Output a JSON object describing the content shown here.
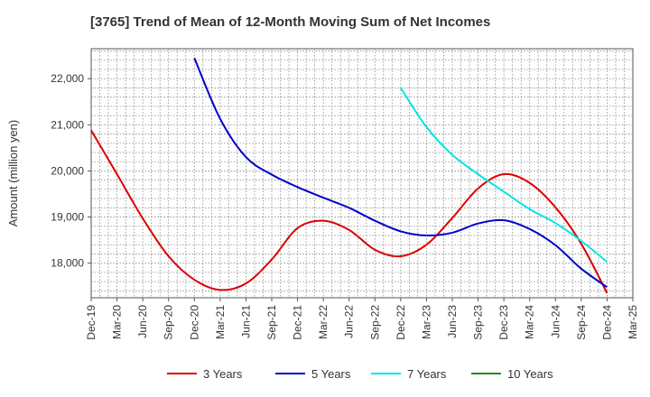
{
  "chart_data": {
    "type": "line",
    "title": "[3765]  Trend of Mean of 12-Month Moving Sum of Net Incomes",
    "ylabel": "Amount (million yen)",
    "xlabel": "",
    "categories": [
      "Dec-19",
      "Mar-20",
      "Jun-20",
      "Sep-20",
      "Dec-20",
      "Mar-21",
      "Jun-21",
      "Sep-21",
      "Dec-21",
      "Mar-22",
      "Jun-22",
      "Sep-22",
      "Dec-22",
      "Mar-23",
      "Jun-23",
      "Sep-23",
      "Dec-23",
      "Mar-24",
      "Jun-24",
      "Sep-24",
      "Dec-24",
      "Mar-25"
    ],
    "y_ticks": [
      18000,
      19000,
      20000,
      21000,
      22000
    ],
    "y_tick_labels": [
      "18,000",
      "19,000",
      "20,000",
      "21,000",
      "22,000"
    ],
    "ylim": [
      17250,
      22650
    ],
    "grid": true,
    "legend_position": "bottom",
    "series": [
      {
        "name": "3 Years",
        "color": "#dd0000",
        "x": [
          "Dec-19",
          "Mar-20",
          "Jun-20",
          "Sep-20",
          "Dec-20",
          "Mar-21",
          "Jun-21",
          "Sep-21",
          "Dec-21",
          "Mar-22",
          "Jun-22",
          "Sep-22",
          "Dec-22",
          "Mar-23",
          "Jun-23",
          "Sep-23",
          "Dec-23",
          "Mar-24",
          "Jun-24",
          "Sep-24",
          "Dec-24"
        ],
        "values": [
          20880,
          19930,
          18970,
          18150,
          17640,
          17420,
          17560,
          18080,
          18760,
          18920,
          18720,
          18290,
          18150,
          18400,
          18980,
          19620,
          19930,
          19740,
          19210,
          18420,
          17350
        ]
      },
      {
        "name": "5 Years",
        "color": "#0000cc",
        "x": [
          "Dec-20",
          "Mar-21",
          "Jun-21",
          "Sep-21",
          "Dec-21",
          "Mar-22",
          "Jun-22",
          "Sep-22",
          "Dec-22",
          "Mar-23",
          "Jun-23",
          "Sep-23",
          "Dec-23",
          "Mar-24",
          "Jun-24",
          "Sep-24",
          "Dec-24"
        ],
        "values": [
          22450,
          21130,
          20300,
          19920,
          19650,
          19420,
          19200,
          18920,
          18690,
          18600,
          18660,
          18860,
          18930,
          18740,
          18390,
          17880,
          17480
        ]
      },
      {
        "name": "7 Years",
        "color": "#00e5e5",
        "x": [
          "Dec-22",
          "Mar-23",
          "Jun-23",
          "Sep-23",
          "Dec-23",
          "Mar-24",
          "Jun-24",
          "Sep-24",
          "Dec-24"
        ],
        "values": [
          21800,
          20950,
          20350,
          19930,
          19550,
          19170,
          18870,
          18480,
          18030
        ]
      },
      {
        "name": "10 Years",
        "color": "#228b22",
        "x": [],
        "values": []
      }
    ]
  }
}
